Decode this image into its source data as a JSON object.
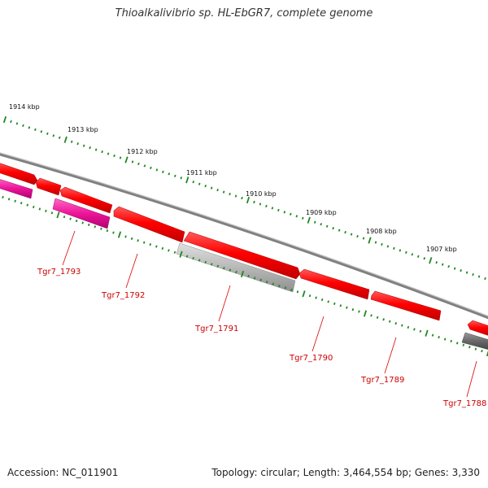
{
  "header": {
    "title": "Thioalkalivibrio sp. HL-EbGR7, complete genome"
  },
  "footer": {
    "accession": "Accession: NC_011901",
    "topology": "Topology: circular; Length: 3,464,554 bp; Genes: 3,330"
  },
  "scale": {
    "labels": [
      "1914 kbp",
      "1913 kbp",
      "1912 kbp",
      "1911 kbp",
      "1910 kbp",
      "1909 kbp",
      "1908 kbp",
      "1907 kbp"
    ]
  },
  "genes": {
    "labels": [
      "Tgr7_1793",
      "Tgr7_1792",
      "Tgr7_1791",
      "Tgr7_1790",
      "Tgr7_1789",
      "Tgr7_1788"
    ]
  },
  "colors": {
    "gene_red": "#ff0000",
    "gene_magenta": "#ee1499",
    "gene_gray": "#b8b8b8",
    "gene_dark": "#666666",
    "backbone": "#808080",
    "ticks": "#228822",
    "label_red": "#cc0000"
  }
}
